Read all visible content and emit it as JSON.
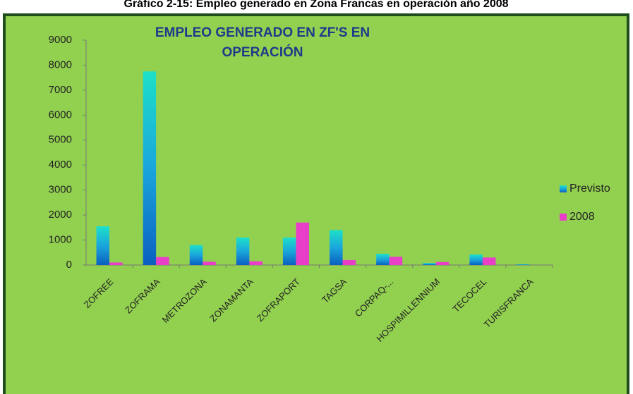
{
  "caption": "Gráfico 2-15: Empleo generado en Zona Francas en operación año 2008",
  "chart_data": {
    "type": "bar",
    "title": [
      "EMPLEO GENERADO EN ZF'S EN",
      "OPERACIÓN"
    ],
    "categories": [
      "ZOFREE",
      "ZOFRAMA",
      "METROZONA",
      "ZONAMANTA",
      "ZOFRAPORT",
      "TAGSA",
      "CORPAQ-...",
      "HOSPIMILLENNIUM",
      "TECOCEL",
      "TURISFRANCA"
    ],
    "series": [
      {
        "name": "Previsto",
        "color": "#1aa6dc",
        "values": [
          1550,
          7750,
          800,
          1100,
          1100,
          1400,
          450,
          80,
          420,
          30
        ]
      },
      {
        "name": "2008",
        "color": "#e83ec8",
        "values": [
          100,
          320,
          130,
          150,
          1700,
          200,
          330,
          120,
          300,
          0
        ]
      }
    ],
    "ylim": [
      0,
      9000
    ],
    "yticks": [
      0,
      1000,
      2000,
      3000,
      4000,
      5000,
      6000,
      7000,
      8000,
      9000
    ],
    "grid": false,
    "legend": "right"
  }
}
